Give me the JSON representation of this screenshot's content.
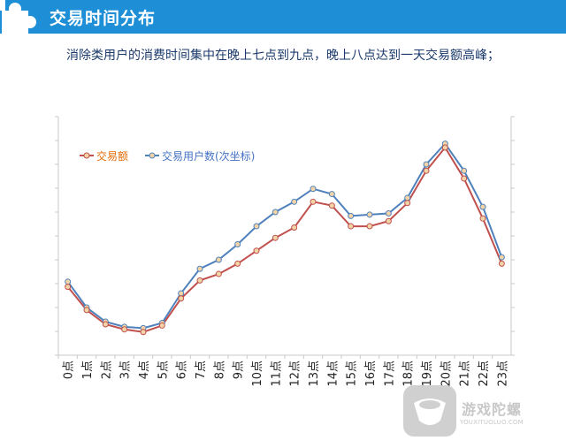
{
  "header": {
    "title": "交易时间分布"
  },
  "subtitle": "消除类用户的消费时间集中在晚上七点到九点，晚上八点达到一天交易额高峰；",
  "watermark": {
    "text": "游戏陀螺",
    "url": "YOUXITUOLUO.COM"
  },
  "colors": {
    "header_bg": "#1e8fd6",
    "series_amount": "#c0504d",
    "series_users": "#4f81bd",
    "marker_fill": "#f2d4a6"
  },
  "chart_data": {
    "type": "line",
    "categories": [
      "0点",
      "1点",
      "2点",
      "3点",
      "4点",
      "5点",
      "6点",
      "7点",
      "8点",
      "9点",
      "10点",
      "11点",
      "12点",
      "13点",
      "14点",
      "15点",
      "16点",
      "17点",
      "18点",
      "19点",
      "20点",
      "21点",
      "22点",
      "23点"
    ],
    "series": [
      {
        "name": "交易额",
        "axis": "primary",
        "values": [
          48,
          30,
          19,
          15,
          13,
          18,
          39,
          53,
          58,
          66,
          76,
          86,
          94,
          114,
          111,
          95,
          95,
          99,
          113,
          138,
          156,
          132,
          101,
          66
        ]
      },
      {
        "name": "交易用户数(次坐标)",
        "axis": "secondary",
        "values": [
          52,
          32,
          21,
          17,
          16,
          20,
          43,
          62,
          69,
          81,
          95,
          106,
          114,
          124,
          120,
          103,
          104,
          105,
          117,
          143,
          159,
          138,
          110,
          71
        ]
      }
    ],
    "ylim": [
      -5,
      180
    ],
    "y_tick_labels": [],
    "grid": false,
    "legend": "top-left"
  }
}
